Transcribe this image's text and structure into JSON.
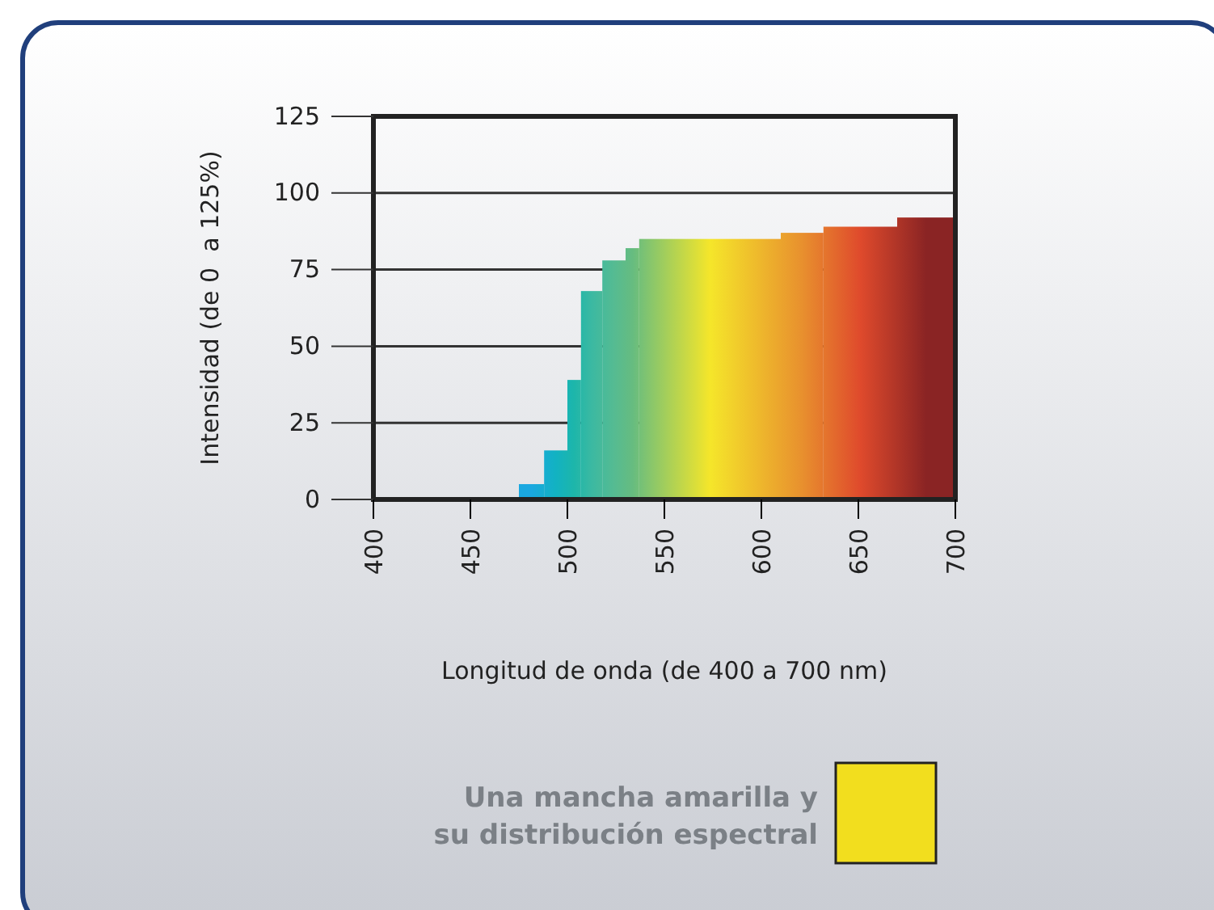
{
  "chart_data": {
    "type": "histogram",
    "xlabel": "Longitud de onda (de 400 a 700 nm)",
    "ylabel": "Intensidad (de 0  a 125%)",
    "bins": [
      475,
      488,
      500,
      507,
      518,
      530,
      537,
      610,
      632,
      670,
      700
    ],
    "series": [
      {
        "name": "Una mancha amarilla y su distribución espectral",
        "color": "#f2de1e",
        "values": [
          5,
          16,
          39,
          68,
          78,
          82,
          85,
          87,
          89,
          92
        ],
        "colors": [
          "#1aa8e0",
          "#12b2c2",
          "#1db6aa",
          "#3bb9a2",
          "#55bb92",
          "#66bc80",
          "#f5e62a",
          "#e8902e",
          "#df4a2c",
          "#8a2424"
        ]
      }
    ],
    "xlim": [
      400,
      700
    ],
    "xticks": [
      400,
      450,
      500,
      550,
      600,
      650,
      700
    ],
    "ylim": [
      0,
      125
    ],
    "yticks": [
      0,
      25,
      50,
      75,
      100,
      125
    ],
    "grid": "y",
    "legend": "bottom"
  }
}
